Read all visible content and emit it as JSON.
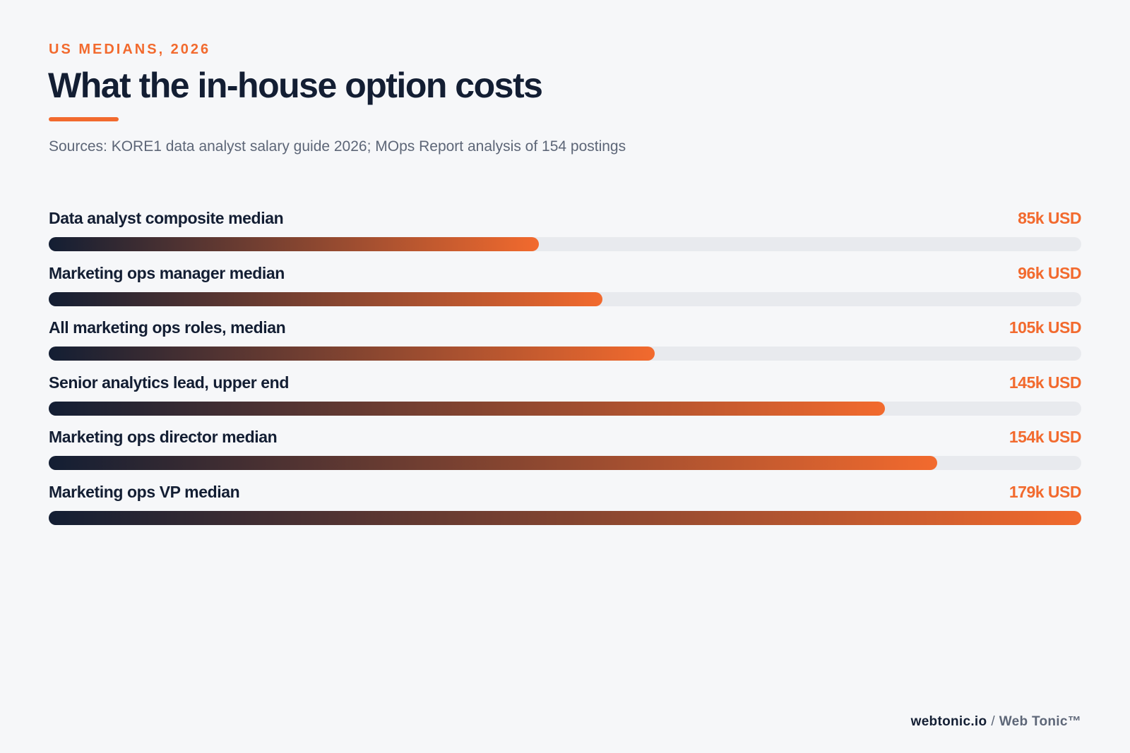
{
  "header": {
    "eyebrow": "US MEDIANS, 2026",
    "title": "What the in-house option costs",
    "subtitle": "Sources: KORE1 data analyst salary guide 2026; MOps Report analysis of 154 postings"
  },
  "chart_data": {
    "type": "bar",
    "orientation": "horizontal",
    "title": "What the in-house option costs",
    "subtitle": "Sources: KORE1 data analyst salary guide 2026; MOps Report analysis of 154 postings",
    "unit": "k USD",
    "xlim": [
      0,
      179
    ],
    "grid": false,
    "categories": [
      "Data analyst composite median",
      "Marketing ops manager median",
      "All marketing ops roles, median",
      "Senior analytics lead, upper end",
      "Marketing ops director median",
      "Marketing ops VP median"
    ],
    "values": [
      85,
      96,
      105,
      145,
      154,
      179
    ],
    "value_labels": [
      "85k USD",
      "96k USD",
      "105k USD",
      "145k USD",
      "154k USD",
      "179k USD"
    ],
    "colors": {
      "gradient_start": "#131e33",
      "gradient_end": "#f26a2e",
      "track": "#e8eaee",
      "value_text": "#f26a2e"
    }
  },
  "footer": {
    "site": "webtonic.io",
    "separator": "/",
    "brand": "Web Tonic™"
  }
}
